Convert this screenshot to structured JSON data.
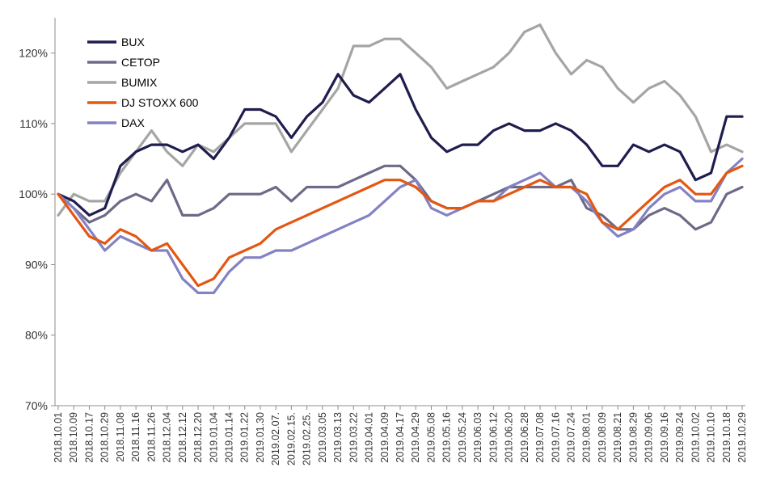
{
  "chart_data": {
    "type": "line",
    "title": "",
    "xlabel": "",
    "ylabel": "",
    "ylim": [
      70,
      125
    ],
    "y_ticks": [
      70,
      80,
      90,
      100,
      110,
      120
    ],
    "y_tick_labels": [
      "70%",
      "80%",
      "90%",
      "100%",
      "110%",
      "120%"
    ],
    "y_unit": "%",
    "grid": false,
    "legend_position": "top-left",
    "x": [
      "2018.10.01",
      "2018.10.09",
      "2018.10.17",
      "2018.10.29",
      "2018.11.08",
      "2018.11.16",
      "2018.11.26",
      "2018.12.04",
      "2018.12.12",
      "2018.12.20",
      "2019.01.04",
      "2019.01.14",
      "2019.01.22",
      "2019.01.30",
      "2019.02.07.",
      "2019.02.15.",
      "2019.02.25.",
      "2019.03.05",
      "2019.03.13",
      "2019.03.22",
      "2019.04.01",
      "2019.04.09",
      "2019.04.17",
      "2019.04.29",
      "2019.05.08",
      "2019.05.16",
      "2019.05.24",
      "2019.06.03",
      "2019.06.12",
      "2019.06.20",
      "2019.06.28",
      "2019.07.08",
      "2019.07.16",
      "2019.07.24",
      "2019.08.01",
      "2019.08.09",
      "2019.08.21",
      "2019.08.29",
      "2019.09.06",
      "2019.09.16",
      "2019.09.24",
      "2019.10.02",
      "2019.10.10",
      "2019.10.18",
      "2019.10.29"
    ],
    "series": [
      {
        "name": "BUX",
        "color": "#1f1d4e",
        "values": [
          100,
          99,
          97,
          98,
          104,
          106,
          107,
          107,
          106,
          107,
          105,
          108,
          112,
          112,
          111,
          108,
          111,
          113,
          117,
          114,
          113,
          115,
          117,
          112,
          108,
          106,
          107,
          107,
          109,
          110,
          109,
          109,
          110,
          109,
          107,
          104,
          104,
          107,
          106,
          107,
          106,
          102,
          103,
          111,
          111
        ]
      },
      {
        "name": "CETOP",
        "color": "#6c6a88",
        "values": [
          100,
          98,
          96,
          97,
          99,
          100,
          99,
          102,
          97,
          97,
          98,
          100,
          100,
          100,
          101,
          99,
          101,
          101,
          101,
          102,
          103,
          104,
          104,
          102,
          99,
          98,
          98,
          99,
          100,
          101,
          101,
          101,
          101,
          102,
          98,
          97,
          95,
          95,
          97,
          98,
          97,
          95,
          96,
          100,
          101
        ]
      },
      {
        "name": "BUMIX",
        "color": "#a5a5a5",
        "values": [
          97,
          100,
          99,
          99,
          103,
          106,
          109,
          106,
          104,
          107,
          106,
          108,
          110,
          110,
          110,
          106,
          109,
          112,
          115,
          121,
          121,
          122,
          122,
          120,
          118,
          115,
          116,
          117,
          118,
          120,
          123,
          124,
          120,
          117,
          119,
          118,
          115,
          113,
          115,
          116,
          114,
          111,
          106,
          107,
          106
        ]
      },
      {
        "name": "DJ STOXX 600",
        "color": "#e35712",
        "values": [
          100,
          97,
          94,
          93,
          95,
          94,
          92,
          93,
          90,
          87,
          88,
          91,
          92,
          93,
          95,
          96,
          97,
          98,
          99,
          100,
          101,
          102,
          102,
          101,
          99,
          98,
          98,
          99,
          99,
          100,
          101,
          102,
          101,
          101,
          100,
          96,
          95,
          97,
          99,
          101,
          102,
          100,
          100,
          103,
          104
        ]
      },
      {
        "name": "DAX",
        "color": "#8282c4",
        "values": [
          100,
          98,
          95,
          92,
          94,
          93,
          92,
          92,
          88,
          86,
          86,
          89,
          91,
          91,
          92,
          92,
          93,
          94,
          95,
          96,
          97,
          99,
          101,
          102,
          98,
          97,
          98,
          99,
          99,
          101,
          102,
          103,
          101,
          101,
          99,
          96,
          94,
          95,
          98,
          100,
          101,
          99,
          99,
          103,
          105
        ]
      }
    ]
  }
}
